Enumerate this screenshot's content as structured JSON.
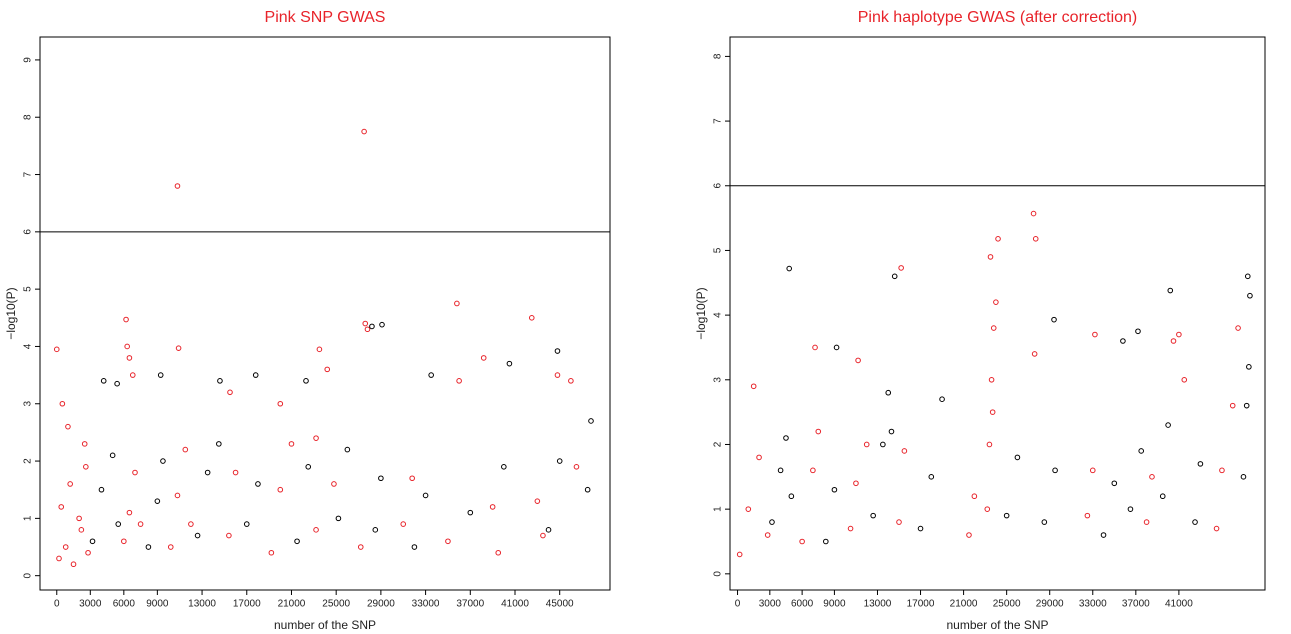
{
  "chart_data": [
    {
      "type": "scatter",
      "title": "Pink SNP GWAS",
      "x_label": "number of the SNP",
      "y_label": "−log10(P)",
      "xlim": [
        -1500,
        49500
      ],
      "ylim": [
        -0.25,
        9.4
      ],
      "xticks": [
        0,
        3000,
        6000,
        9000,
        13000,
        17000,
        21000,
        25000,
        29000,
        33000,
        37000,
        41000,
        45000
      ],
      "yticks": [
        0,
        1,
        2,
        3,
        4,
        5,
        6,
        7,
        8,
        9
      ],
      "threshold": 6,
      "series": [
        {
          "color": "#e8232a",
          "x": [
            200,
            800,
            1500,
            2200,
            2800,
            400,
            1200,
            2000,
            2600,
            0,
            500,
            1000,
            2500,
            6000,
            6500,
            7000,
            7500,
            6200,
            6300,
            6500,
            6800,
            10200,
            10800,
            11500,
            12000,
            10800,
            10900,
            15400,
            16000,
            15500,
            19200,
            20000,
            21000,
            20000,
            23200,
            23500,
            24200,
            24800,
            23200,
            27200,
            27500,
            27600,
            27800,
            31000,
            31800,
            35800,
            36000,
            38200,
            39000,
            42500,
            43000,
            44800,
            46000,
            35000,
            39500,
            43500,
            46500
          ],
          "values": [
            0.3,
            0.5,
            0.2,
            0.8,
            0.4,
            1.2,
            1.6,
            1.0,
            1.9,
            3.95,
            3.0,
            2.6,
            2.3,
            0.6,
            1.1,
            1.8,
            0.9,
            4.47,
            4.0,
            3.8,
            3.5,
            0.5,
            1.4,
            2.2,
            0.9,
            6.8,
            3.97,
            0.7,
            1.8,
            3.2,
            0.4,
            1.5,
            2.3,
            3.0,
            0.8,
            3.95,
            3.6,
            1.6,
            2.4,
            0.5,
            7.75,
            4.4,
            4.3,
            0.9,
            1.7,
            4.75,
            3.4,
            3.8,
            1.2,
            4.5,
            1.3,
            3.5,
            3.4,
            0.6,
            0.4,
            0.7,
            1.9
          ]
        },
        {
          "color": "#000000",
          "x": [
            3200,
            4000,
            5000,
            5500,
            4200,
            5400,
            8200,
            9000,
            9500,
            9300,
            12600,
            13500,
            14500,
            14600,
            17000,
            18000,
            17800,
            21500,
            22500,
            22300,
            25200,
            26000,
            28500,
            29000,
            28200,
            29100,
            32000,
            33000,
            33500,
            37000,
            40000,
            40500,
            44000,
            45000,
            44800,
            47500,
            47800
          ],
          "values": [
            0.6,
            1.5,
            2.1,
            0.9,
            3.4,
            3.35,
            0.5,
            1.3,
            2.0,
            3.5,
            0.7,
            1.8,
            2.3,
            3.4,
            0.9,
            1.6,
            3.5,
            0.6,
            1.9,
            3.4,
            1.0,
            2.2,
            0.8,
            1.7,
            4.35,
            4.38,
            0.5,
            1.4,
            3.5,
            1.1,
            1.9,
            3.7,
            0.8,
            2.0,
            3.92,
            1.5,
            2.7
          ]
        }
      ]
    },
    {
      "type": "scatter",
      "title": "Pink haplotype GWAS (after correction)",
      "x_label": "number of the SNP",
      "y_label": "−log10(P)",
      "xlim": [
        -700,
        49000
      ],
      "ylim": [
        -0.25,
        8.3
      ],
      "xticks": [
        0,
        3000,
        6000,
        9000,
        13000,
        17000,
        21000,
        25000,
        29000,
        33000,
        37000,
        41000
      ],
      "yticks": [
        0,
        1,
        2,
        3,
        4,
        5,
        6,
        7,
        8
      ],
      "threshold": 6,
      "series": [
        {
          "color": "#e8232a",
          "x": [
            200,
            1000,
            2000,
            2800,
            1500,
            6000,
            7000,
            7500,
            7200,
            10500,
            11000,
            12000,
            11200,
            15000,
            15500,
            15200,
            21500,
            22000,
            23200,
            23400,
            23600,
            23800,
            24000,
            23500,
            23700,
            24200,
            27500,
            27700,
            27600,
            32500,
            33000,
            33200,
            38000,
            38500,
            40500,
            41000,
            41500,
            44500,
            45000,
            46500,
            46000
          ],
          "values": [
            0.3,
            1.0,
            1.8,
            0.6,
            2.9,
            0.5,
            1.6,
            2.2,
            3.5,
            0.7,
            1.4,
            2.0,
            3.3,
            0.8,
            1.9,
            4.73,
            0.6,
            1.2,
            1.0,
            2.0,
            3.0,
            3.8,
            4.2,
            4.9,
            2.5,
            5.18,
            5.57,
            5.18,
            3.4,
            0.9,
            1.6,
            3.7,
            0.8,
            1.5,
            3.6,
            3.7,
            3.0,
            0.7,
            1.6,
            3.8,
            2.6
          ]
        },
        {
          "color": "#000000",
          "x": [
            3200,
            4000,
            4500,
            5000,
            4800,
            8200,
            9000,
            9200,
            12600,
            13500,
            14000,
            14300,
            14600,
            17000,
            18000,
            19000,
            25000,
            26000,
            28500,
            29500,
            29400,
            34000,
            35000,
            35800,
            36500,
            37500,
            37200,
            39500,
            40000,
            40200,
            42500,
            43000,
            47000,
            47300,
            47500,
            47600,
            47400
          ],
          "values": [
            0.8,
            1.6,
            2.1,
            1.2,
            4.72,
            0.5,
            1.3,
            3.5,
            0.9,
            2.0,
            2.8,
            2.2,
            4.6,
            0.7,
            1.5,
            2.7,
            0.9,
            1.8,
            0.8,
            1.6,
            3.93,
            0.6,
            1.4,
            3.6,
            1.0,
            1.9,
            3.75,
            1.2,
            2.3,
            4.38,
            0.8,
            1.7,
            1.5,
            2.6,
            3.2,
            4.3,
            4.6
          ]
        }
      ]
    }
  ]
}
